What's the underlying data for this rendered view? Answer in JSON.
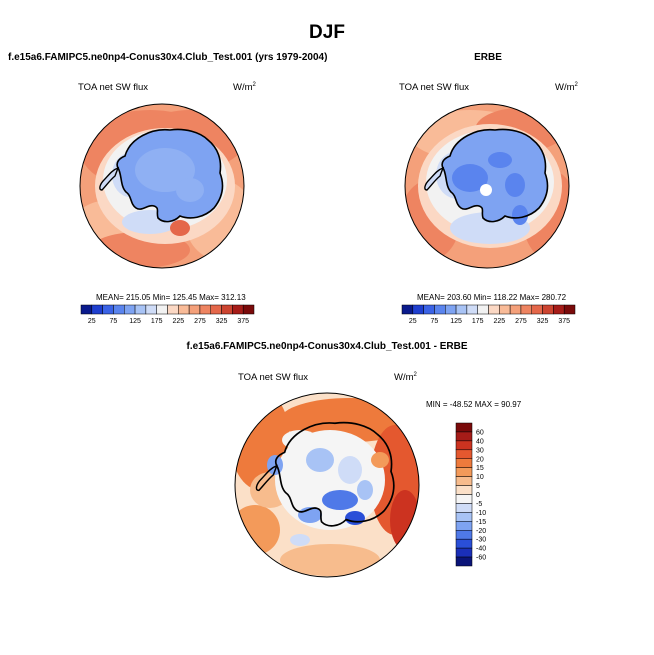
{
  "page_title": "DJF",
  "panels": [
    {
      "id": "model",
      "title": "f.e15a6.FAMIPC5.ne0np4-Conus30x4.Club_Test.001 (yrs 1979-2004)",
      "field_label": "TOA net SW flux",
      "unit_base": "W/m",
      "unit_exp": "2",
      "stats": "MEAN= 215.05  Min= 125.45  Max= 312.13"
    },
    {
      "id": "obs",
      "title": "ERBE",
      "field_label": "TOA net SW flux",
      "unit_base": "W/m",
      "unit_exp": "2",
      "stats": "MEAN= 203.60  Min= 118.22  Max= 280.72"
    },
    {
      "id": "diff",
      "title": "f.e15a6.FAMIPC5.ne0np4-Conus30x4.Club_Test.001 - ERBE",
      "field_label": "TOA net SW flux",
      "unit_base": "W/m",
      "unit_exp": "2",
      "stats": "MIN = -48.52  MAX =  90.97"
    }
  ],
  "chart_data": [
    {
      "type": "heatmap",
      "title": "f.e15a6.FAMIPC5.ne0np4-Conus30x4.Club_Test.001 (yrs 1979-2004)",
      "variable": "TOA net SW flux",
      "projection": "south polar stereographic",
      "mean": 215.05,
      "min": 125.45,
      "max": 312.13,
      "colorbar_ticks": [
        "25",
        "75",
        "125",
        "175",
        "225",
        "275",
        "325",
        "375"
      ],
      "levels": [
        25,
        50,
        75,
        100,
        125,
        150,
        175,
        200,
        225,
        250,
        275,
        300,
        325,
        350,
        375
      ],
      "colors": [
        "#0a1a8c",
        "#1f3fcf",
        "#3b63e6",
        "#5a84ee",
        "#7ea3f2",
        "#a8c3f5",
        "#cfdcf7",
        "#f2f2f2",
        "#fbd8c4",
        "#f9bb98",
        "#f4a07a",
        "#ee8461",
        "#e4674a",
        "#cc4430",
        "#a61c18",
        "#7a0a0a"
      ]
    },
    {
      "type": "heatmap",
      "title": "ERBE",
      "variable": "TOA net SW flux",
      "projection": "south polar stereographic",
      "mean": 203.6,
      "min": 118.22,
      "max": 280.72,
      "colorbar_ticks": [
        "25",
        "75",
        "125",
        "175",
        "225",
        "275",
        "325",
        "375"
      ],
      "levels": [
        25,
        50,
        75,
        100,
        125,
        150,
        175,
        200,
        225,
        250,
        275,
        300,
        325,
        350,
        375
      ],
      "colors": [
        "#0a1a8c",
        "#1f3fcf",
        "#3b63e6",
        "#5a84ee",
        "#7ea3f2",
        "#a8c3f5",
        "#cfdcf7",
        "#f2f2f2",
        "#fbd8c4",
        "#f9bb98",
        "#f4a07a",
        "#ee8461",
        "#e4674a",
        "#cc4430",
        "#a61c18",
        "#7a0a0a"
      ]
    },
    {
      "type": "heatmap",
      "title": "f.e15a6.FAMIPC5.ne0np4-Conus30x4.Club_Test.001 - ERBE",
      "variable": "TOA net SW flux",
      "projection": "south polar stereographic",
      "min": -48.52,
      "max": 90.97,
      "colorbar_labels": [
        "60",
        "40",
        "30",
        "20",
        "15",
        "10",
        "5",
        "0",
        "-5",
        "-10",
        "-15",
        "-20",
        "-30",
        "-40",
        "-60"
      ],
      "colors": [
        "#7a0a0a",
        "#a61c18",
        "#cc3320",
        "#e4582f",
        "#ee7a3c",
        "#f39a5a",
        "#f7bc8d",
        "#fbe0c8",
        "#f5f5f5",
        "#cfdcf7",
        "#a8c3f5",
        "#7ea3f2",
        "#4f79e8",
        "#2a4fd8",
        "#1a2fb8",
        "#0a1478"
      ]
    }
  ]
}
